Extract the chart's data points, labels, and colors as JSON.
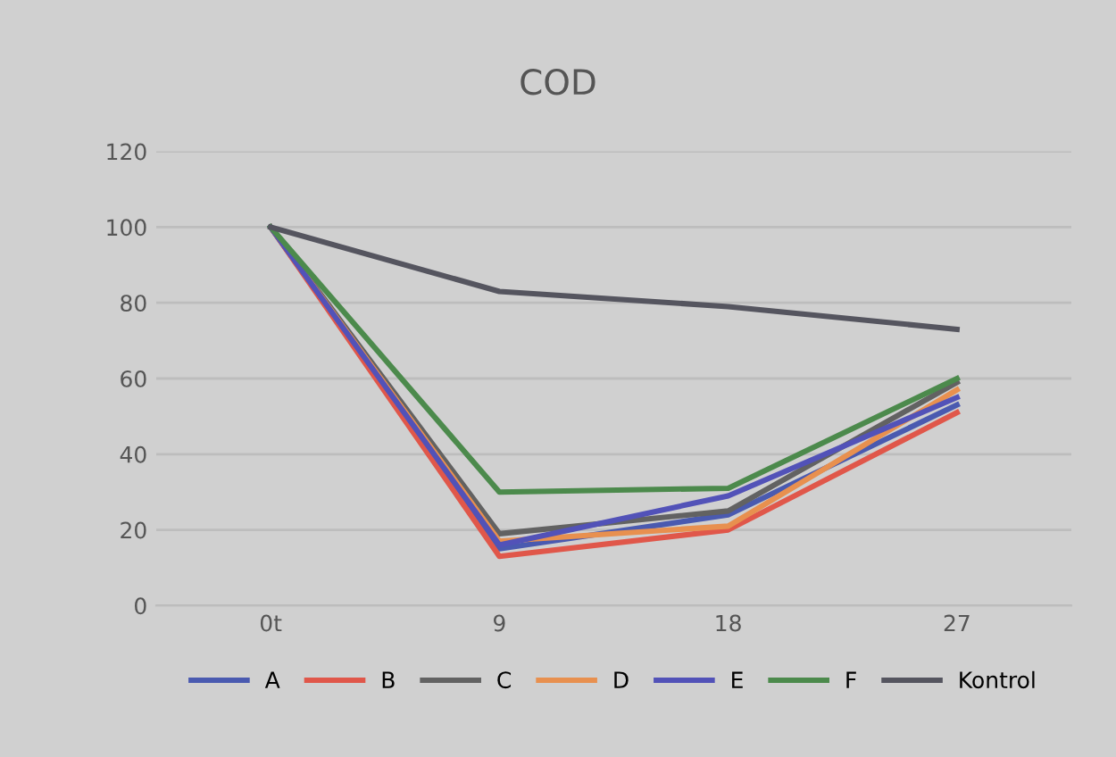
{
  "chart_data": {
    "type": "line",
    "title": "COD",
    "categories": [
      "0t",
      "9",
      "18",
      "27"
    ],
    "series": [
      {
        "name": "A",
        "color": "#4a5ab0",
        "values": [
          100,
          15,
          24,
          53
        ]
      },
      {
        "name": "B",
        "color": "#e0574a",
        "values": [
          100,
          13,
          20,
          51
        ]
      },
      {
        "name": "C",
        "color": "#626262",
        "values": [
          100,
          19,
          25,
          59
        ]
      },
      {
        "name": "D",
        "color": "#e8904f",
        "values": [
          100,
          17,
          21,
          57
        ]
      },
      {
        "name": "E",
        "color": "#5252b8",
        "values": [
          100,
          16,
          29,
          55
        ]
      },
      {
        "name": "F",
        "color": "#4c8a4c",
        "values": [
          100,
          30,
          31,
          60
        ]
      },
      {
        "name": "Kontrol",
        "color": "#55555f",
        "values": [
          100,
          83,
          79,
          73
        ]
      }
    ],
    "ylim": [
      0,
      120
    ],
    "yticks": [
      0,
      20,
      40,
      60,
      80,
      100,
      120
    ],
    "grid": "y",
    "legend": "bottom",
    "marker": "none",
    "line_style": "solid"
  }
}
